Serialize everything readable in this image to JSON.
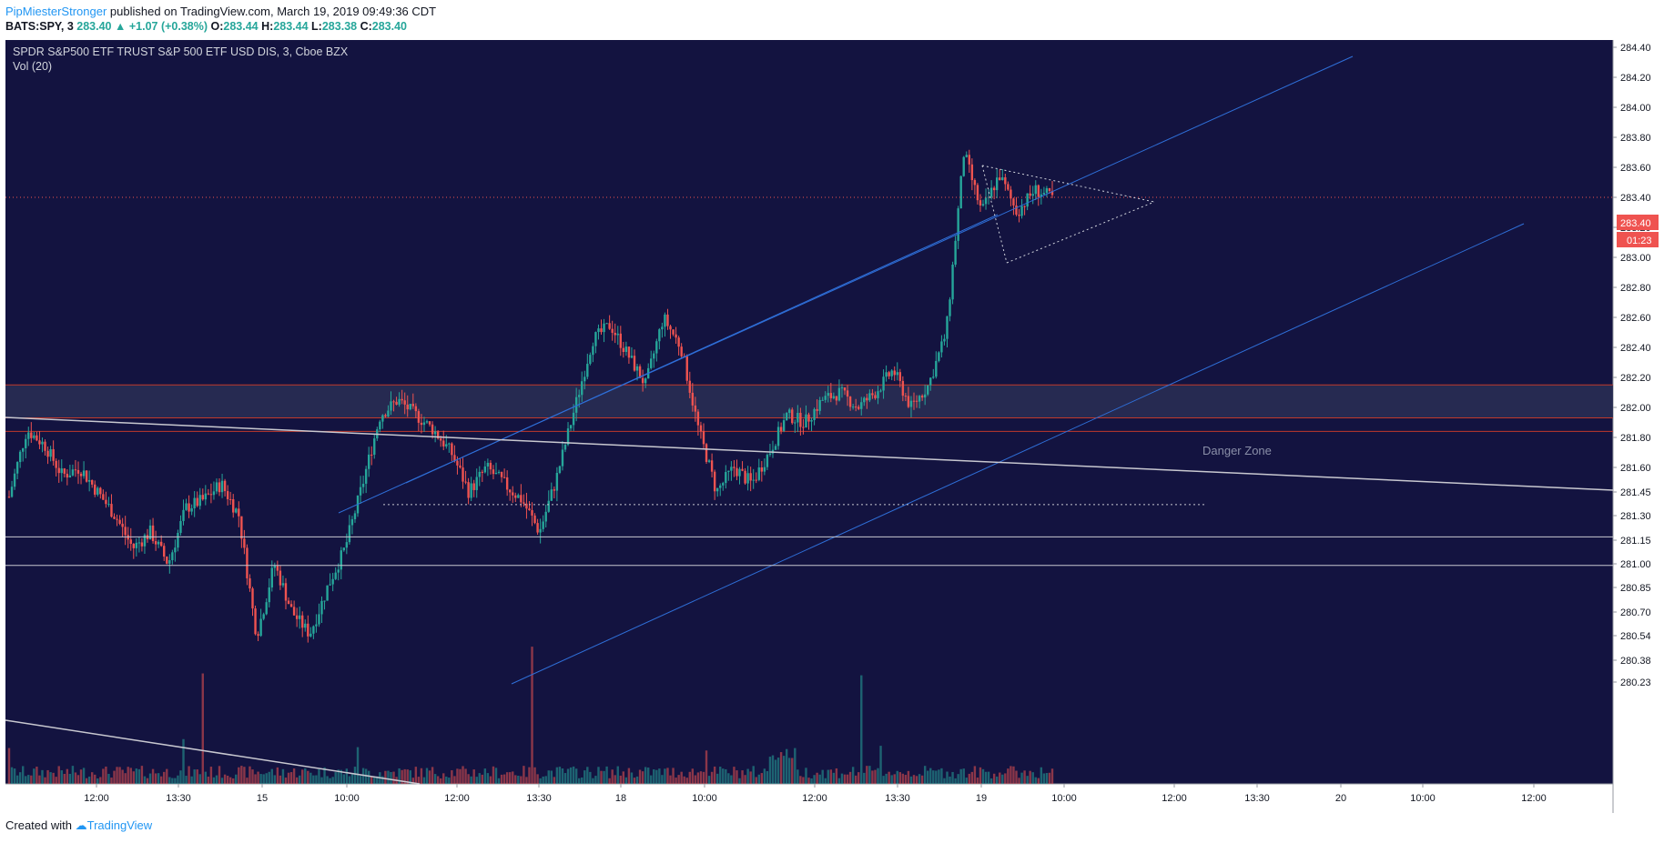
{
  "header": {
    "author": "PipMiesterStronger",
    "published_text": "published on TradingView.com, March 19, 2019 09:49:36 CDT"
  },
  "symbol_bar": {
    "symbol": "BATS:SPY, 3",
    "last": "283.40",
    "change": "+1.07 (+0.38%)",
    "o_label": "O:",
    "o": "283.44",
    "h_label": "H:",
    "h": "283.44",
    "l_label": "L:",
    "l": "283.38",
    "c_label": "C:",
    "c": "283.40"
  },
  "chart_title": "SPDR S&P500 ETF TRUST S&P 500 ETF USD DIS, 3, Cboe BZX",
  "volume_label": "Vol (20)",
  "annotation": "Danger Zone",
  "price_label": "283.40",
  "countdown": "01:23",
  "footer": {
    "created_with": "Created with",
    "brand": "TradingView"
  },
  "colors": {
    "background": "#131340",
    "up": "#26a69a",
    "down": "#ef5350",
    "trendline": "#2f6fd8",
    "zone_border": "#c0392b",
    "price_line": "#ef5350"
  },
  "chart_data": {
    "type": "candlestick",
    "y_axis": {
      "ticks": [
        "284.40",
        "284.20",
        "284.00",
        "283.80",
        "283.60",
        "283.40",
        "283.20",
        "283.00",
        "282.80",
        "282.60",
        "282.40",
        "282.20",
        "282.00",
        "281.80",
        "281.60",
        "281.45",
        "281.30",
        "281.15",
        "281.00",
        "280.85",
        "280.70",
        "280.54",
        "280.38",
        "280.23"
      ],
      "range": [
        280.23,
        284.4
      ]
    },
    "x_axis": {
      "ticks": [
        "12:00",
        "13:30",
        "15",
        "10:00",
        "12:00",
        "13:30",
        "18",
        "10:00",
        "12:00",
        "13:30",
        "19",
        "10:00",
        "12:00",
        "13:30",
        "20",
        "10:00",
        "12:00"
      ]
    },
    "annotation_zone": {
      "label": "Danger Zone",
      "top": 282.15,
      "bottom": 281.93
    },
    "support_level": 281.84,
    "horizontal_lines": [
      281.17,
      280.99
    ],
    "dotted_support": 281.37,
    "current_price": 283.4,
    "price_path": [
      281.42,
      281.85,
      281.75,
      281.55,
      281.6,
      281.45,
      281.3,
      281.1,
      281.2,
      281.0,
      281.35,
      281.4,
      281.5,
      281.3,
      280.54,
      281.0,
      280.7,
      280.55,
      280.85,
      281.1,
      281.5,
      281.95,
      282.05,
      281.95,
      281.85,
      281.7,
      281.45,
      281.6,
      281.5,
      281.4,
      281.2,
      281.55,
      282.0,
      282.45,
      282.55,
      282.35,
      282.15,
      282.6,
      282.4,
      281.85,
      281.45,
      281.6,
      281.5,
      281.7,
      281.95,
      281.9,
      282.05,
      282.1,
      282.0,
      282.1,
      282.25,
      282.0,
      282.15,
      282.5,
      283.7,
      283.3,
      283.55,
      283.3,
      283.45,
      283.4
    ]
  }
}
